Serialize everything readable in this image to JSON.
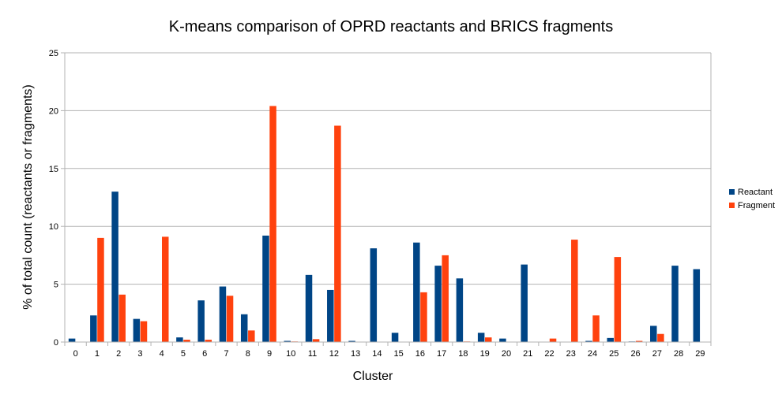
{
  "chart_data": {
    "type": "bar",
    "title": "K-means comparison of OPRD reactants and BRICS fragments",
    "xlabel": "Cluster",
    "ylabel": "% of total count (reactants or fragments)",
    "ylim": [
      0,
      25
    ],
    "yticks": [
      0,
      5,
      10,
      15,
      20,
      25
    ],
    "grid": true,
    "legend_position": "right",
    "categories": [
      "0",
      "1",
      "2",
      "3",
      "4",
      "5",
      "6",
      "7",
      "8",
      "9",
      "10",
      "11",
      "12",
      "13",
      "14",
      "15",
      "16",
      "17",
      "18",
      "19",
      "20",
      "21",
      "22",
      "23",
      "24",
      "25",
      "26",
      "27",
      "28",
      "29"
    ],
    "series": [
      {
        "name": "Reactant",
        "color": "#004586",
        "values": [
          0.3,
          2.3,
          13.0,
          2.0,
          0,
          0.4,
          3.6,
          4.8,
          2.4,
          9.2,
          0.1,
          5.8,
          4.5,
          0.1,
          8.1,
          0.8,
          8.6,
          6.6,
          5.5,
          0.8,
          0.3,
          6.7,
          0,
          0,
          0.1,
          0.35,
          0.05,
          1.4,
          6.6,
          6.3
        ]
      },
      {
        "name": "Fragment",
        "color": "#ff420e",
        "values": [
          0,
          9.0,
          4.1,
          1.8,
          9.1,
          0.2,
          0.2,
          4.0,
          1.0,
          20.4,
          0.05,
          0.25,
          18.7,
          0,
          0,
          0,
          4.3,
          7.5,
          0.05,
          0.4,
          0,
          0,
          0.3,
          8.85,
          2.3,
          7.35,
          0.1,
          0.7,
          0,
          0
        ]
      }
    ]
  }
}
